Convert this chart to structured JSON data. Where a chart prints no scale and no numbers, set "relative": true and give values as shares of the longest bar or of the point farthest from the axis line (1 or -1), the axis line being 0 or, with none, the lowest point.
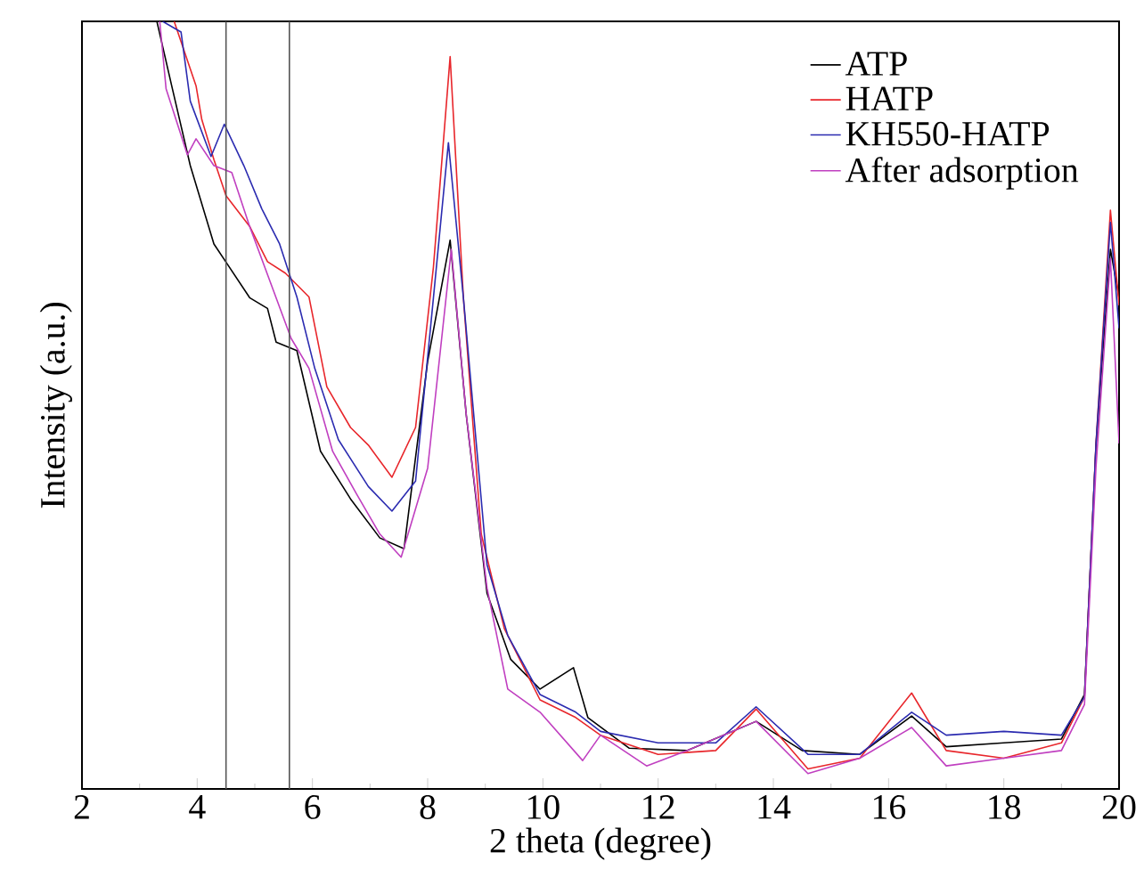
{
  "chart_data": {
    "type": "line",
    "relative": true,
    "xlabel": "2 theta (degree)",
    "ylabel": "Intensity (a.u.)",
    "xlim": [
      2,
      20
    ],
    "xticks": [
      2,
      4,
      6,
      8,
      10,
      12,
      14,
      16,
      18,
      20
    ],
    "legend": "top right",
    "grid": false,
    "ref_lines": [
      {
        "axis": "x",
        "value": 4.5,
        "color": "#555555"
      },
      {
        "axis": "x",
        "value": 5.6,
        "color": "#555555"
      }
    ],
    "series": [
      {
        "name": "ATP",
        "color": "#000000",
        "x": [
          3.3,
          3.57,
          3.88,
          4.29,
          4.91,
          5.22,
          5.37,
          5.73,
          6.14,
          6.66,
          7.17,
          7.59,
          8.0,
          8.39,
          8.67,
          9.03,
          9.44,
          9.95,
          10.53,
          10.78,
          11.5,
          12.5,
          13.7,
          14.5,
          15.5,
          16.4,
          17,
          18,
          19,
          19.4,
          19.6,
          19.85,
          20
        ],
        "values": [
          1.0,
          0.912,
          0.812,
          0.71,
          0.64,
          0.626,
          0.582,
          0.571,
          0.44,
          0.378,
          0.327,
          0.313,
          0.557,
          0.715,
          0.487,
          0.255,
          0.169,
          0.13,
          0.158,
          0.093,
          0.053,
          0.05,
          0.088,
          0.05,
          0.045,
          0.095,
          0.055,
          0.06,
          0.065,
          0.123,
          0.448,
          0.703,
          0.64
        ]
      },
      {
        "name": "HATP",
        "color": "#e8262b",
        "x": [
          3.6,
          3.98,
          4.08,
          4.29,
          4.5,
          4.91,
          5.22,
          5.53,
          5.94,
          6.25,
          6.66,
          6.97,
          7.38,
          7.79,
          8.1,
          8.39,
          8.62,
          8.93,
          9.33,
          9.95,
          10.57,
          11,
          12,
          13,
          13.7,
          14.6,
          15.5,
          16.4,
          17,
          18,
          19,
          19.4,
          19.6,
          19.85,
          20
        ],
        "values": [
          1.0,
          0.916,
          0.872,
          0.82,
          0.773,
          0.733,
          0.687,
          0.672,
          0.641,
          0.524,
          0.471,
          0.448,
          0.406,
          0.471,
          0.68,
          0.954,
          0.64,
          0.332,
          0.209,
          0.116,
          0.093,
          0.07,
          0.045,
          0.05,
          0.104,
          0.026,
          0.04,
          0.125,
          0.05,
          0.04,
          0.06,
          0.12,
          0.45,
          0.754,
          0.63
        ]
      },
      {
        "name": "KH550-HATP",
        "color": "#2b2bb0",
        "x": [
          3.4,
          3.72,
          3.88,
          4.24,
          4.47,
          4.81,
          5.12,
          5.43,
          5.73,
          6.04,
          6.45,
          6.97,
          7.38,
          7.79,
          8.1,
          8.36,
          8.62,
          9.03,
          9.39,
          9.95,
          10.57,
          11,
          12,
          13,
          13.7,
          14.6,
          15.5,
          16.4,
          17,
          18,
          19,
          19.4,
          19.6,
          19.85,
          20
        ],
        "values": [
          1.0,
          0.986,
          0.896,
          0.824,
          0.866,
          0.812,
          0.756,
          0.71,
          0.641,
          0.548,
          0.455,
          0.394,
          0.362,
          0.401,
          0.64,
          0.842,
          0.64,
          0.292,
          0.2,
          0.123,
          0.1,
          0.075,
          0.06,
          0.06,
          0.107,
          0.045,
          0.045,
          0.1,
          0.07,
          0.075,
          0.07,
          0.12,
          0.45,
          0.738,
          0.6
        ]
      },
      {
        "name": "After adsorption",
        "color": "#c03fc0",
        "x": [
          3.35,
          3.46,
          3.83,
          3.98,
          4.29,
          4.6,
          4.91,
          5.32,
          5.63,
          5.94,
          6.35,
          6.76,
          7.17,
          7.54,
          8.0,
          8.41,
          8.67,
          9.03,
          9.39,
          9.95,
          10.69,
          11,
          11.8,
          12.5,
          13.7,
          14.6,
          15.5,
          16.4,
          17,
          18,
          19,
          19.4,
          19.6,
          19.85,
          20
        ],
        "values": [
          1.0,
          0.912,
          0.826,
          0.847,
          0.812,
          0.803,
          0.733,
          0.65,
          0.587,
          0.548,
          0.44,
          0.385,
          0.332,
          0.302,
          0.418,
          0.703,
          0.487,
          0.262,
          0.13,
          0.1,
          0.037,
          0.07,
          0.03,
          0.05,
          0.088,
          0.02,
          0.04,
          0.08,
          0.03,
          0.04,
          0.05,
          0.11,
          0.42,
          0.691,
          0.45
        ]
      }
    ]
  }
}
